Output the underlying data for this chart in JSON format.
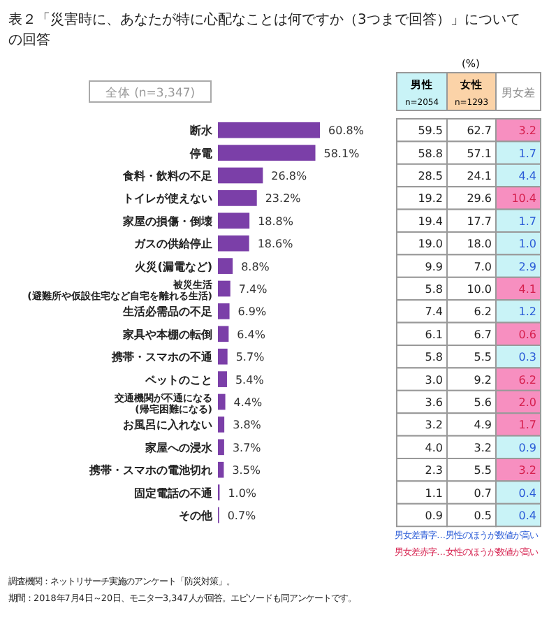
{
  "chart_data": [
    {
      "type": "bar",
      "orientation": "horizontal",
      "title": "表２「災害時に、あなたが特に心配なことは何ですか（3つまで回答）」についての回答",
      "subtitle": "全体 (n=3,347)",
      "categories": [
        "断水",
        "停電",
        "食料・飲料の不足",
        "トイレが使えない",
        "家屋の損傷・倒壊",
        "ガスの供給停止",
        "火災(漏電など)",
        "被災生活(避難所や仮設住宅など自宅を離れる生活)",
        "生活必需品の不足",
        "家具や本棚の転倒",
        "携帯・スマホの不通",
        "ペットのこと",
        "交通機関が不通になる(帰宅困難になる)",
        "お風呂に入れない",
        "家屋への浸水",
        "携帯・スマホの電池切れ",
        "固定電話の不通",
        "その他"
      ],
      "values": [
        60.8,
        58.1,
        26.8,
        23.2,
        18.8,
        18.6,
        8.8,
        7.4,
        6.9,
        6.4,
        5.7,
        5.4,
        4.4,
        3.8,
        3.7,
        3.5,
        1.0,
        0.7
      ],
      "value_labels": [
        "60.8%",
        "58.1%",
        "26.8%",
        "23.2%",
        "18.8%",
        "18.6%",
        "8.8%",
        "7.4%",
        "6.9%",
        "6.4%",
        "5.7%",
        "5.4%",
        "4.4%",
        "3.8%",
        "3.7%",
        "3.5%",
        "1.0%",
        "0.7%"
      ],
      "color": "#7b3fa8",
      "annotations": [
        "調査機関：ネットリサーチ実施のアンケート「防災対策」。",
        "期間：2018年7月4日～20日、モニター3,347人が回答。エピソードも同アンケートです。"
      ]
    },
    {
      "type": "heatmap",
      "categories": [
        "男性\nn=2054",
        "女性\nn=1293",
        "男女差"
      ],
      "y_categories": [
        null,
        null,
        null,
        null,
        null,
        null,
        null,
        null,
        null,
        null,
        null,
        null,
        null,
        null,
        null,
        null,
        null,
        null
      ],
      "cells": [
        [
          59.5,
          62.7,
          3.2
        ],
        [
          58.8,
          57.1,
          1.7
        ],
        [
          28.5,
          24.1,
          4.4
        ],
        [
          19.2,
          29.6,
          10.4
        ],
        [
          19.4,
          17.7,
          1.7
        ],
        [
          19.0,
          18.0,
          1.0
        ],
        [
          9.9,
          7.0,
          2.9
        ],
        [
          5.8,
          10.0,
          4.1
        ],
        [
          7.4,
          6.2,
          1.2
        ],
        [
          6.1,
          6.7,
          0.6
        ],
        [
          5.8,
          5.5,
          0.3
        ],
        [
          3.0,
          9.2,
          6.2
        ],
        [
          3.6,
          5.6,
          2.0
        ],
        [
          3.2,
          4.9,
          1.7
        ],
        [
          4.0,
          3.2,
          0.9
        ],
        [
          2.3,
          5.5,
          3.2
        ],
        [
          1.1,
          0.7,
          0.4
        ],
        [
          0.9,
          0.5,
          0.4
        ]
      ],
      "cell_labels": [
        [
          "59.5",
          "62.7",
          "3.2"
        ],
        [
          "58.8",
          "57.1",
          "1.7"
        ],
        [
          "28.5",
          "24.1",
          "4.4"
        ],
        [
          "19.2",
          "29.6",
          "10.4"
        ],
        [
          "19.4",
          "17.7",
          "1.7"
        ],
        [
          "19.0",
          "18.0",
          "1.0"
        ],
        [
          "9.9",
          "7.0",
          "2.9"
        ],
        [
          "5.8",
          "10.0",
          "4.1"
        ],
        [
          "7.4",
          "6.2",
          "1.2"
        ],
        [
          "6.1",
          "6.7",
          "0.6"
        ],
        [
          "5.8",
          "5.5",
          "0.3"
        ],
        [
          "3.0",
          "9.2",
          "6.2"
        ],
        [
          "3.6",
          "5.6",
          "2.0"
        ],
        [
          "3.2",
          "4.9",
          "1.7"
        ],
        [
          "4.0",
          "3.2",
          "0.9"
        ],
        [
          "2.3",
          "5.5",
          "3.2"
        ],
        [
          "1.1",
          "0.7",
          "0.4"
        ],
        [
          "0.9",
          "0.5",
          "0.4"
        ]
      ],
      "annotations": [
        "(%)",
        "男女差青字…男性のほうが数値が高い",
        "男女差赤字…女性のほうが数値が高い"
      ]
    }
  ]
}
